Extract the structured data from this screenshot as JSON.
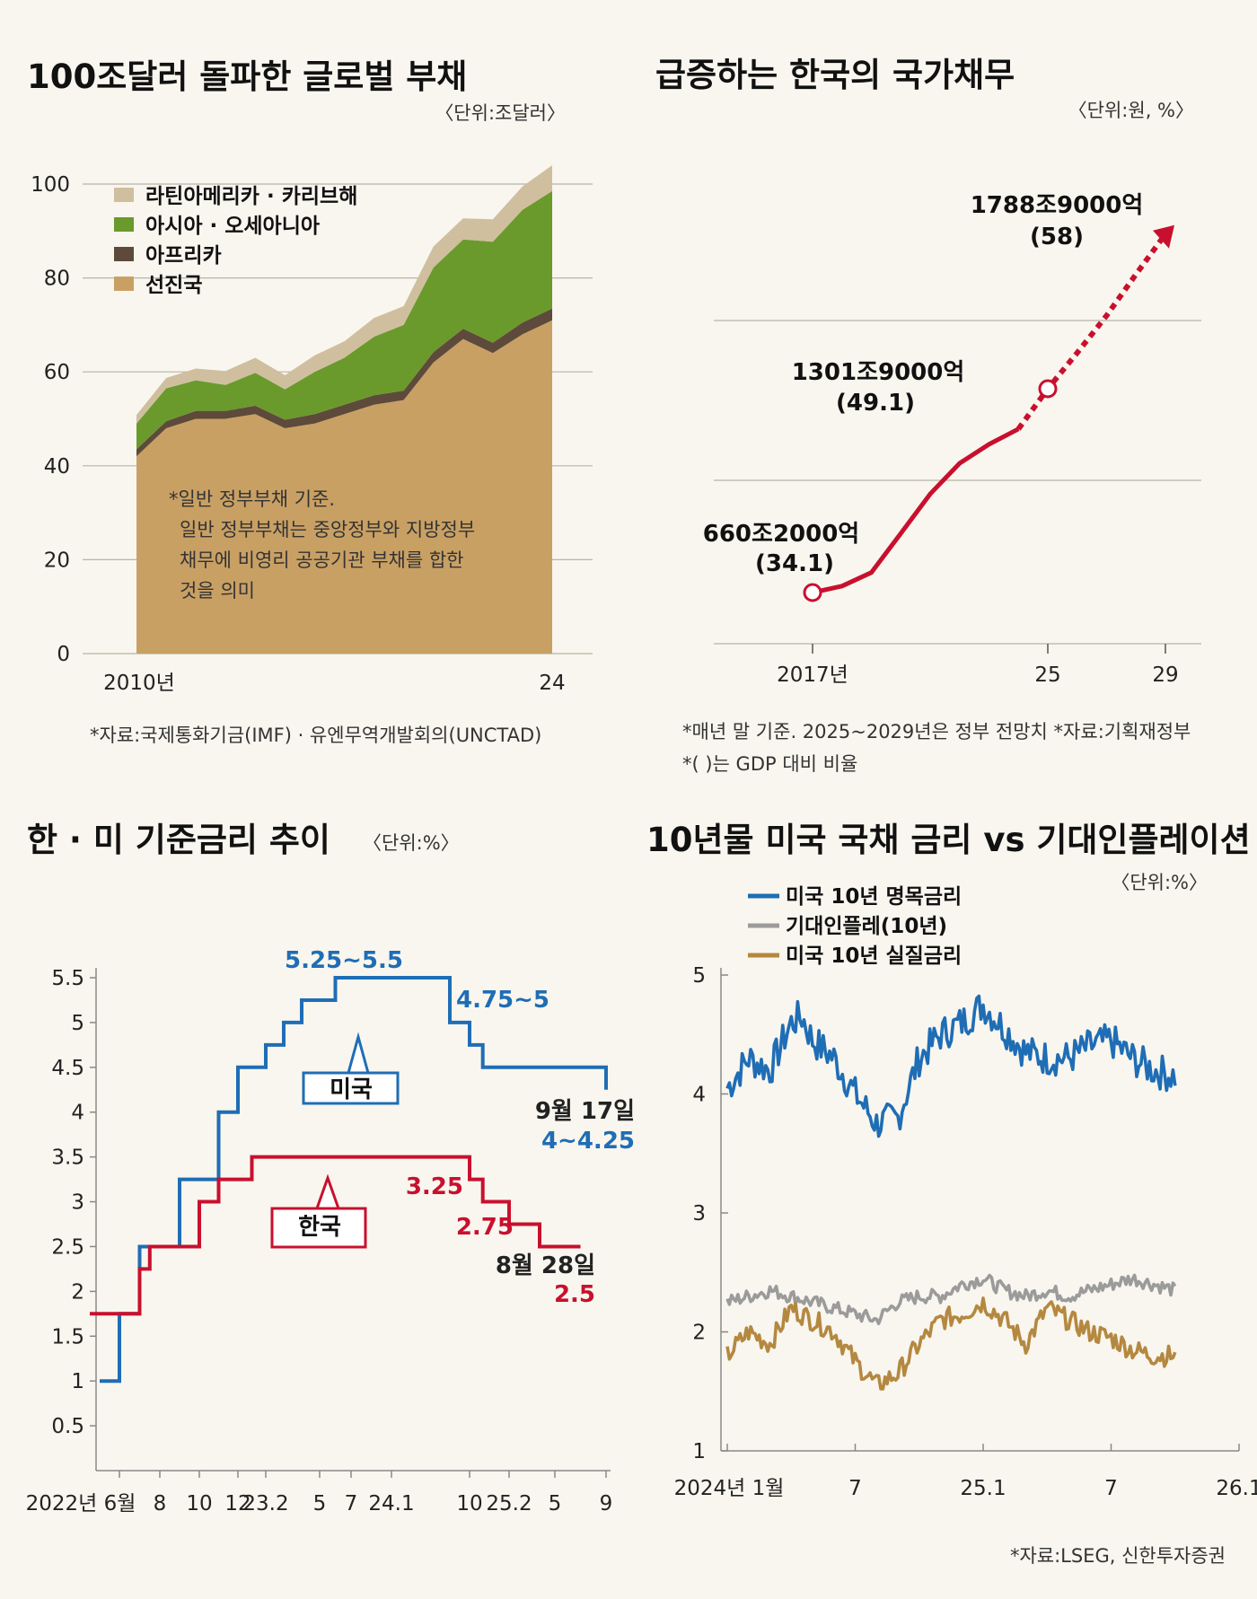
{
  "chart_data": [
    {
      "type": "area",
      "title": "100조달러 돌파한 글로벌 부채",
      "unit": "〈단위:조달러〉",
      "x": [
        2010,
        2011,
        2012,
        2013,
        2014,
        2015,
        2016,
        2017,
        2018,
        2019,
        2020,
        2021,
        2022,
        2023,
        2024
      ],
      "x_tick_labels": [
        "2010년",
        "24"
      ],
      "ylim": [
        0,
        100
      ],
      "y_ticks": [
        "0",
        "20",
        "40",
        "60",
        "80",
        "100"
      ],
      "legend": [
        "라틴아메리카 · 카리브해",
        "아시아 · 오세아니아",
        "아프리카",
        "선진국"
      ],
      "colors": [
        "#cfbf9f",
        "#6a9a2c",
        "#5e4a3a",
        "#c9a064"
      ],
      "series": [
        {
          "name": "선진국",
          "values": [
            42,
            48,
            50,
            50,
            51,
            48,
            49,
            51,
            53,
            54,
            62,
            67,
            64,
            68,
            71
          ]
        },
        {
          "name": "아프리카",
          "values": [
            1.5,
            1.5,
            1.7,
            1.7,
            1.8,
            1.8,
            2,
            2,
            2,
            2,
            2.2,
            2.2,
            2.2,
            2.5,
            2.5
          ]
        },
        {
          "name": "아시아 · 오세아니아",
          "values": [
            5.5,
            7,
            6.5,
            5.5,
            7,
            6.5,
            9,
            10,
            12.5,
            14,
            18,
            19,
            21.5,
            24,
            25
          ]
        },
        {
          "name": "라틴아메리카 · 카리브해",
          "values": [
            1.8,
            2.2,
            2.5,
            3,
            3.2,
            3,
            3.5,
            3.5,
            4,
            4,
            4.5,
            4.5,
            4.8,
            5,
            5.5
          ]
        }
      ],
      "annotation": [
        "*일반 정부부채 기준.",
        "일반 정부부채는 중앙정부와 지방정부",
        "채무에 비영리 공공기관 부채를 합한",
        "것을 의미"
      ],
      "source": "*자료:국제통화기금(IMF) · 유엔무역개발회의(UNCTAD)"
    },
    {
      "type": "line",
      "title": "급증하는 한국의 국가채무",
      "unit": "〈단위:원, %〉",
      "x": [
        2017,
        2018,
        2019,
        2020,
        2021,
        2022,
        2023,
        2024,
        2025,
        2026,
        2027,
        2028,
        2029
      ],
      "x_tick_labels": [
        "2017년",
        "25",
        "29"
      ],
      "actual_values": [
        660.2,
        680.5,
        723.2,
        846.6,
        970.7,
        1067.4,
        1126.8,
        1175.2
      ],
      "projected_values": [
        1301.9,
        1415.2,
        1532.2,
        1662.6,
        1788.9
      ],
      "labels": [
        {
          "text": "660조2000억",
          "sub": "(34.1)"
        },
        {
          "text": "1301조9000억",
          "sub": "(49.1)"
        },
        {
          "text": "1788조9000억",
          "sub": "(58)"
        }
      ],
      "notes": [
        "*매년 말 기준. 2025~2029년은 정부 전망치   *자료:기획재정부",
        "*(  )는 GDP 대비 비율"
      ],
      "colors": {
        "line": "#c8102e"
      }
    },
    {
      "type": "line",
      "title": "한 · 미 기준금리 추이",
      "unit": "〈단위:%〉",
      "x_tick_labels": [
        "2022년 6월",
        "8",
        "10",
        "12",
        "23.2",
        "5",
        "7",
        "24.1",
        "10",
        "25.2",
        "5",
        "9"
      ],
      "y_ticks": [
        "0.5",
        "1",
        "1.5",
        "2",
        "2.5",
        "3",
        "3.5",
        "4",
        "4.5",
        "5",
        "5.5"
      ],
      "ylim": [
        0,
        5.8
      ],
      "series": [
        {
          "name": "미국",
          "color": "#1f6db5",
          "steps": [
            {
              "m": -1,
              "v": 1
            },
            {
              "m": 0,
              "v": 1.75
            },
            {
              "m": 1,
              "v": 2.5
            },
            {
              "m": 3,
              "v": 3.25
            },
            {
              "m": 5,
              "v": 4
            },
            {
              "m": 6,
              "v": 4.5
            },
            {
              "m": 8,
              "v": 4.75
            },
            {
              "m": 9,
              "v": 5
            },
            {
              "m": 10,
              "v": 5.25
            },
            {
              "m": 12,
              "v": 5.5
            },
            {
              "m": 18,
              "v": 5
            },
            {
              "m": 19,
              "v": 4.75
            },
            {
              "m": 20,
              "v": 4.5
            },
            {
              "m": 27,
              "v": 4.25
            }
          ],
          "end_m": 27
        },
        {
          "name": "한국",
          "color": "#c8102e",
          "steps": [
            {
              "m": -1.5,
              "v": 1.75
            },
            {
              "m": 1,
              "v": 2.25
            },
            {
              "m": 1.5,
              "v": 2.5
            },
            {
              "m": 4,
              "v": 3
            },
            {
              "m": 5,
              "v": 3.25
            },
            {
              "m": 7,
              "v": 3.5
            },
            {
              "m": 19,
              "v": 3.25
            },
            {
              "m": 20,
              "v": 3
            },
            {
              "m": 22,
              "v": 2.75
            },
            {
              "m": 24,
              "v": 2.5
            }
          ],
          "end_m": 26
        }
      ],
      "labels": {
        "us_peak": "5.25~5.5",
        "us_cut": "4.75~5",
        "us_box": "미국",
        "us_date": "9월 17일",
        "us_last": "4~4.25",
        "kr_box": "한국",
        "kr_a": "3.25",
        "kr_b": "2.75",
        "kr_date": "8월 28일",
        "kr_last": "2.5"
      }
    },
    {
      "type": "line",
      "title": "10년물 미국 국채 금리 vs 기대인플레이션",
      "unit": "〈단위:%〉",
      "x_tick_labels": [
        "2024년 1월",
        "7",
        "25.1",
        "7",
        "26.1"
      ],
      "y_ticks": [
        "1",
        "2",
        "3",
        "4",
        "5"
      ],
      "ylim": [
        1,
        5
      ],
      "series": [
        {
          "name": "미국 10년 명목금리",
          "color": "#1f6db5",
          "anchors": [
            [
              0,
              4.05
            ],
            [
              1,
              4.3
            ],
            [
              2,
              4.2
            ],
            [
              3,
              4.6
            ],
            [
              3.5,
              4.65
            ],
            [
              4,
              4.45
            ],
            [
              5,
              4.3
            ],
            [
              6,
              4.0
            ],
            [
              7,
              3.75
            ],
            [
              8,
              3.8
            ],
            [
              9,
              4.3
            ],
            [
              10,
              4.5
            ],
            [
              11,
              4.6
            ],
            [
              12,
              4.75
            ],
            [
              13,
              4.55
            ],
            [
              14,
              4.35
            ],
            [
              15,
              4.3
            ],
            [
              16,
              4.3
            ],
            [
              17,
              4.4
            ],
            [
              18,
              4.45
            ],
            [
              19,
              4.3
            ],
            [
              20,
              4.2
            ],
            [
              21,
              4.15
            ]
          ]
        },
        {
          "name": "기대인플레(10년)",
          "color": "#9b9b9b",
          "anchors": [
            [
              0,
              2.25
            ],
            [
              1,
              2.3
            ],
            [
              2,
              2.35
            ],
            [
              3,
              2.3
            ],
            [
              4,
              2.25
            ],
            [
              5,
              2.2
            ],
            [
              6,
              2.15
            ],
            [
              7,
              2.1
            ],
            [
              8,
              2.25
            ],
            [
              9,
              2.3
            ],
            [
              10,
              2.3
            ],
            [
              11,
              2.4
            ],
            [
              12,
              2.45
            ],
            [
              13,
              2.35
            ],
            [
              14,
              2.3
            ],
            [
              15,
              2.35
            ],
            [
              16,
              2.3
            ],
            [
              17,
              2.35
            ],
            [
              18,
              2.4
            ],
            [
              19,
              2.45
            ],
            [
              20,
              2.4
            ],
            [
              21,
              2.35
            ]
          ]
        },
        {
          "name": "미국 10년 실질금리",
          "color": "#b58840",
          "anchors": [
            [
              0,
              1.8
            ],
            [
              1,
              2.0
            ],
            [
              2,
              1.9
            ],
            [
              3,
              2.2
            ],
            [
              4,
              2.1
            ],
            [
              5,
              2.0
            ],
            [
              6,
              1.75
            ],
            [
              7,
              1.55
            ],
            [
              8,
              1.65
            ],
            [
              9,
              1.9
            ],
            [
              10,
              2.1
            ],
            [
              11,
              2.15
            ],
            [
              12,
              2.25
            ],
            [
              13,
              2.1
            ],
            [
              14,
              1.9
            ],
            [
              15,
              2.2
            ],
            [
              16,
              2.1
            ],
            [
              17,
              2.0
            ],
            [
              18,
              1.95
            ],
            [
              19,
              1.85
            ],
            [
              20,
              1.8
            ],
            [
              21,
              1.8
            ]
          ]
        }
      ],
      "source": "*자료:LSEG, 신한투자증권"
    }
  ]
}
